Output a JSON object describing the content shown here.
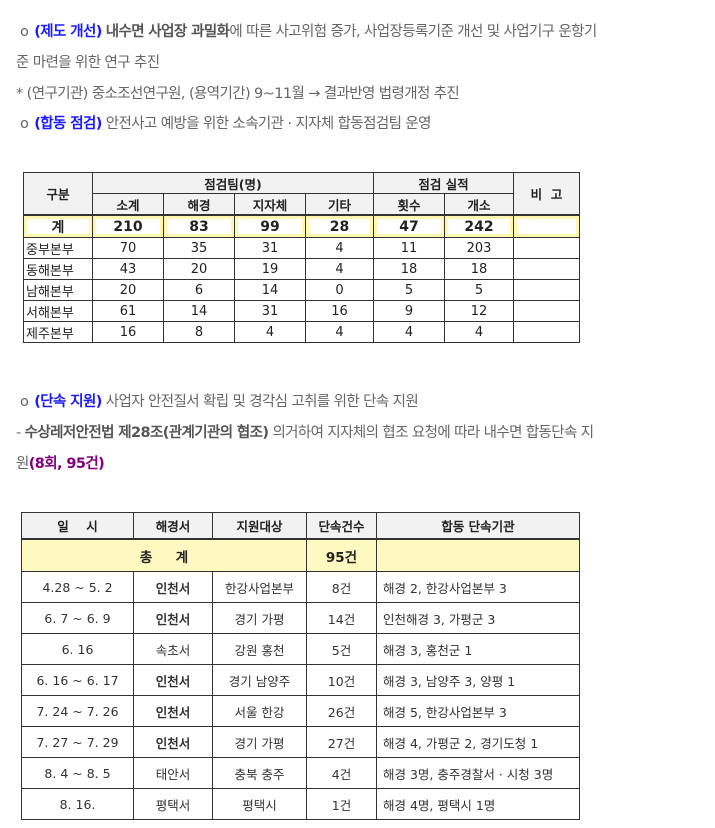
{
  "section1": {
    "bullet": "o",
    "item1": {
      "tag": "(제도 개선)",
      "bold": "내수면 사업장 과밀화",
      "text": "에 따른 사고위험 증가, 사업장등록기준 개선 및 사업기구 운항기",
      "cont": "준 마련을 위한 연구 추진"
    },
    "note": "* (연구기관) 중소조선연구원, (용역기간) 9~11월 → 결과반영 법령개정 추진",
    "item2": {
      "tag": "(합동 점검)",
      "text": "안전사고 예방을 위한 소속기관 · 지자체 합동점검팀 운영"
    }
  },
  "table1": {
    "headers": {
      "category": "구분",
      "team": "점검팀(명)",
      "result": "점검 실적",
      "remarks": "비  고",
      "sub": [
        "소계",
        "해경",
        "지자체",
        "기타",
        "횟수",
        "개소"
      ]
    },
    "total": {
      "label": "계",
      "values": [
        "210",
        "83",
        "99",
        "28",
        "47",
        "242"
      ],
      "remarks": ""
    },
    "rows": [
      {
        "name": "중부본부",
        "values": [
          "70",
          "35",
          "31",
          "4",
          "11",
          "203"
        ],
        "remarks": ""
      },
      {
        "name": "동해본부",
        "values": [
          "43",
          "20",
          "19",
          "4",
          "18",
          "18"
        ],
        "remarks": ""
      },
      {
        "name": "남해본부",
        "values": [
          "20",
          "6",
          "14",
          "0",
          "5",
          "5"
        ],
        "remarks": ""
      },
      {
        "name": "서해본부",
        "values": [
          "61",
          "14",
          "31",
          "16",
          "9",
          "12"
        ],
        "remarks": ""
      },
      {
        "name": "제주본부",
        "values": [
          "16",
          "8",
          "4",
          "4",
          "4",
          "4"
        ],
        "remarks": ""
      }
    ]
  },
  "section2": {
    "bullet": "o",
    "item": {
      "tag": "(단속 지원)",
      "text": "사업자 안전질서 확립 및 경각심 고취를 위한 단속 지원"
    },
    "sub": {
      "prefix": "- ",
      "bold": "수상레저안전법 제28조(관계기관의 협조)",
      "text": " 의거하여 지자체의 협조 요청에 따라 내수면 합동단속 지",
      "cont": "원",
      "highlight": "(8회, 95건)"
    }
  },
  "table2": {
    "headers": [
      "일    시",
      "해경서",
      "지원대상",
      "단속건수",
      "합동 단속기관"
    ],
    "total": {
      "label": "총     계",
      "count": "95건",
      "orgs": ""
    },
    "rows": [
      {
        "date": "4.28 ~ 5. 2",
        "station": "인천서",
        "bold": true,
        "target": "한강사업본부",
        "count": "8건",
        "orgs": "해경 2, 한강사업본부 3"
      },
      {
        "date": "6. 7 ~ 6. 9",
        "station": "인천서",
        "bold": true,
        "target": "경기 가평",
        "count": "14건",
        "orgs": "인천해경 3, 가평군 3"
      },
      {
        "date": "6. 16",
        "station": "속초서",
        "bold": false,
        "target": "강원 홍천",
        "count": "5건",
        "orgs": "해경 3, 홍천군 1"
      },
      {
        "date": "6. 16 ~ 6. 17",
        "station": "인천서",
        "bold": true,
        "target": "경기 남양주",
        "count": "10건",
        "orgs": "해경 3, 남양주 3, 양평 1"
      },
      {
        "date": "7. 24 ~ 7. 26",
        "station": "인천서",
        "bold": true,
        "target": "서울 한강",
        "count": "26건",
        "orgs": "해경 5, 한강사업본부 3"
      },
      {
        "date": "7. 27 ~ 7. 29",
        "station": "인천서",
        "bold": true,
        "target": "경기 가평",
        "count": "27건",
        "orgs": "해경 4, 가평군 2, 경기도청 1"
      },
      {
        "date": "8. 4 ~ 8. 5",
        "station": "태안서",
        "bold": false,
        "target": "충북 충주",
        "count": "4건",
        "orgs": "해경 3명, 충주경찰서 · 시청 3명"
      },
      {
        "date": "8. 16.",
        "station": "평택서",
        "bold": false,
        "target": "평택시",
        "count": "1건",
        "orgs": "해경 4명, 평택시 1명"
      }
    ]
  }
}
